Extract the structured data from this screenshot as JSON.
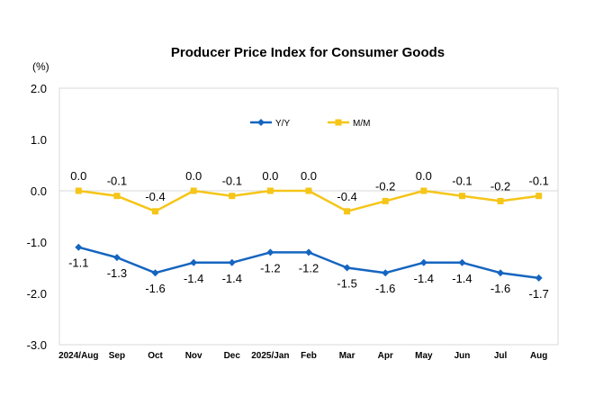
{
  "chart_data": {
    "type": "line",
    "title": "Producer Price Index for Consumer Goods",
    "unit_label": "(%)",
    "x": [
      "2024/Aug",
      "Sep",
      "Oct",
      "Nov",
      "Dec",
      "2025/Jan",
      "Feb",
      "Mar",
      "Apr",
      "May",
      "Jun",
      "Jul",
      "Aug"
    ],
    "ylim": [
      -3.0,
      2.0
    ],
    "yticks": [
      2.0,
      1.0,
      0.0,
      -1.0,
      -2.0,
      -3.0
    ],
    "ytick_labels": [
      "2.0",
      "1.0",
      "0.0",
      "-1.0",
      "-2.0",
      "-3.0"
    ],
    "grid": false,
    "legend_position": "top-center",
    "series": [
      {
        "name": "Y/Y",
        "color": "#1565C0",
        "marker": "diamond",
        "label_position": "below",
        "values": [
          -1.1,
          -1.3,
          -1.6,
          -1.4,
          -1.4,
          -1.2,
          -1.2,
          -1.5,
          -1.6,
          -1.4,
          -1.4,
          -1.6,
          -1.7
        ],
        "labels": [
          "-1.1",
          "-1.3",
          "-1.6",
          "-1.4",
          "-1.4",
          "-1.2",
          "-1.2",
          "-1.5",
          "-1.6",
          "-1.4",
          "-1.4",
          "-1.6",
          "-1.7"
        ]
      },
      {
        "name": "M/M",
        "color": "#F5C518",
        "marker": "square",
        "label_position": "above",
        "values": [
          0.0,
          -0.1,
          -0.4,
          0.0,
          -0.1,
          0.0,
          0.0,
          -0.4,
          -0.2,
          0.0,
          -0.1,
          -0.2,
          -0.1
        ],
        "labels": [
          "0.0",
          "-0.1",
          "-0.4",
          "0.0",
          "-0.1",
          "0.0",
          "0.0",
          "-0.4",
          "-0.2",
          "0.0",
          "-0.1",
          "-0.2",
          "-0.1"
        ]
      }
    ]
  }
}
